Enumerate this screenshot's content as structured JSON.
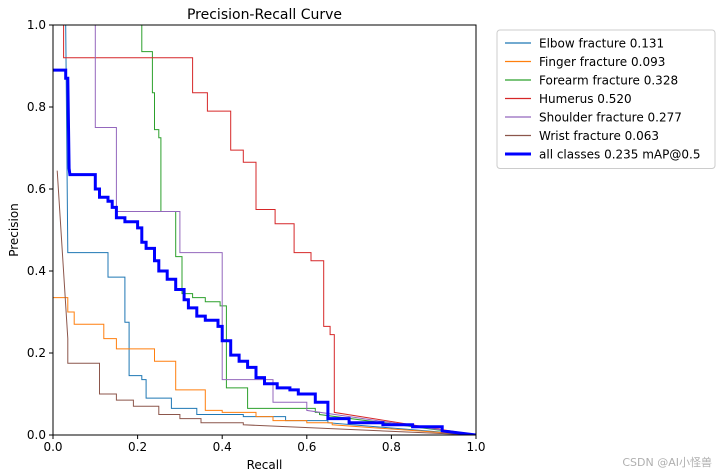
{
  "chart_data": {
    "type": "line",
    "title": "Precision-Recall Curve",
    "xlabel": "Recall",
    "ylabel": "Precision",
    "xlim": [
      0,
      1
    ],
    "ylim": [
      0,
      1
    ],
    "xticks": [
      "0.0",
      "0.2",
      "0.4",
      "0.6",
      "0.8",
      "1.0"
    ],
    "yticks": [
      "0.0",
      "0.2",
      "0.4",
      "0.6",
      "0.8",
      "1.0"
    ],
    "grid": false,
    "legend_position": "outside-top-right",
    "series": [
      {
        "name": "Elbow fracture 0.131",
        "color": "#1f77b4",
        "linewidth": "thin",
        "points": [
          [
            0.03,
            1.0
          ],
          [
            0.035,
            0.445
          ],
          [
            0.1,
            0.445
          ],
          [
            0.13,
            0.445
          ],
          [
            0.13,
            0.385
          ],
          [
            0.17,
            0.385
          ],
          [
            0.17,
            0.275
          ],
          [
            0.18,
            0.275
          ],
          [
            0.18,
            0.145
          ],
          [
            0.21,
            0.145
          ],
          [
            0.21,
            0.135
          ],
          [
            0.22,
            0.135
          ],
          [
            0.22,
            0.09
          ],
          [
            0.28,
            0.09
          ],
          [
            0.28,
            0.065
          ],
          [
            0.34,
            0.065
          ],
          [
            0.34,
            0.05
          ],
          [
            0.45,
            0.05
          ],
          [
            0.45,
            0.045
          ],
          [
            0.55,
            0.045
          ],
          [
            0.55,
            0.035
          ],
          [
            0.65,
            0.035
          ],
          [
            0.65,
            0.03
          ],
          [
            1.0,
            0.0
          ]
        ]
      },
      {
        "name": "Finger fracture 0.093",
        "color": "#ff7f0e",
        "linewidth": "thin",
        "points": [
          [
            0.0,
            0.335
          ],
          [
            0.035,
            0.335
          ],
          [
            0.035,
            0.3
          ],
          [
            0.05,
            0.3
          ],
          [
            0.05,
            0.27
          ],
          [
            0.12,
            0.27
          ],
          [
            0.12,
            0.235
          ],
          [
            0.15,
            0.235
          ],
          [
            0.15,
            0.21
          ],
          [
            0.24,
            0.21
          ],
          [
            0.24,
            0.18
          ],
          [
            0.29,
            0.18
          ],
          [
            0.29,
            0.11
          ],
          [
            0.36,
            0.11
          ],
          [
            0.36,
            0.06
          ],
          [
            0.4,
            0.06
          ],
          [
            0.4,
            0.055
          ],
          [
            0.48,
            0.055
          ],
          [
            0.48,
            0.045
          ],
          [
            0.52,
            0.045
          ],
          [
            0.52,
            0.035
          ],
          [
            0.6,
            0.035
          ],
          [
            0.6,
            0.03
          ],
          [
            0.66,
            0.03
          ],
          [
            0.66,
            0.025
          ],
          [
            1.0,
            0.0
          ]
        ]
      },
      {
        "name": "Forearm fracture 0.328",
        "color": "#2ca02c",
        "linewidth": "thin",
        "points": [
          [
            0.21,
            1.0
          ],
          [
            0.21,
            0.935
          ],
          [
            0.235,
            0.935
          ],
          [
            0.235,
            0.835
          ],
          [
            0.24,
            0.835
          ],
          [
            0.24,
            0.745
          ],
          [
            0.25,
            0.745
          ],
          [
            0.25,
            0.725
          ],
          [
            0.255,
            0.725
          ],
          [
            0.255,
            0.545
          ],
          [
            0.29,
            0.545
          ],
          [
            0.29,
            0.435
          ],
          [
            0.305,
            0.435
          ],
          [
            0.305,
            0.345
          ],
          [
            0.33,
            0.345
          ],
          [
            0.33,
            0.335
          ],
          [
            0.36,
            0.335
          ],
          [
            0.36,
            0.325
          ],
          [
            0.395,
            0.325
          ],
          [
            0.395,
            0.315
          ],
          [
            0.41,
            0.315
          ],
          [
            0.41,
            0.115
          ],
          [
            0.46,
            0.115
          ],
          [
            0.46,
            0.065
          ],
          [
            0.62,
            0.065
          ],
          [
            0.62,
            0.055
          ],
          [
            0.63,
            0.055
          ],
          [
            0.63,
            0.05
          ],
          [
            1.0,
            0.0
          ]
        ]
      },
      {
        "name": "Humerus 0.520",
        "color": "#d62728",
        "linewidth": "thin",
        "points": [
          [
            0.025,
            1.0
          ],
          [
            0.025,
            0.92
          ],
          [
            0.33,
            0.92
          ],
          [
            0.33,
            0.835
          ],
          [
            0.365,
            0.835
          ],
          [
            0.365,
            0.79
          ],
          [
            0.42,
            0.79
          ],
          [
            0.42,
            0.695
          ],
          [
            0.45,
            0.695
          ],
          [
            0.45,
            0.665
          ],
          [
            0.48,
            0.665
          ],
          [
            0.48,
            0.55
          ],
          [
            0.525,
            0.55
          ],
          [
            0.525,
            0.515
          ],
          [
            0.57,
            0.515
          ],
          [
            0.57,
            0.445
          ],
          [
            0.61,
            0.445
          ],
          [
            0.61,
            0.425
          ],
          [
            0.64,
            0.425
          ],
          [
            0.64,
            0.265
          ],
          [
            0.655,
            0.265
          ],
          [
            0.655,
            0.245
          ],
          [
            0.665,
            0.245
          ],
          [
            0.665,
            0.055
          ],
          [
            1.0,
            0.0
          ]
        ]
      },
      {
        "name": "Shoulder fracture 0.277",
        "color": "#9467bd",
        "linewidth": "thin",
        "points": [
          [
            0.1,
            1.0
          ],
          [
            0.1,
            0.75
          ],
          [
            0.15,
            0.75
          ],
          [
            0.15,
            0.545
          ],
          [
            0.3,
            0.545
          ],
          [
            0.3,
            0.445
          ],
          [
            0.4,
            0.445
          ],
          [
            0.4,
            0.135
          ],
          [
            0.52,
            0.135
          ],
          [
            0.52,
            0.08
          ],
          [
            0.6,
            0.08
          ],
          [
            0.6,
            0.06
          ],
          [
            1.0,
            0.0
          ]
        ]
      },
      {
        "name": "Wrist fracture 0.063",
        "color": "#8c564b",
        "linewidth": "thin",
        "points": [
          [
            0.01,
            0.645
          ],
          [
            0.035,
            0.235
          ],
          [
            0.035,
            0.175
          ],
          [
            0.11,
            0.175
          ],
          [
            0.11,
            0.1
          ],
          [
            0.15,
            0.1
          ],
          [
            0.15,
            0.085
          ],
          [
            0.19,
            0.085
          ],
          [
            0.19,
            0.07
          ],
          [
            0.25,
            0.07
          ],
          [
            0.25,
            0.05
          ],
          [
            0.3,
            0.05
          ],
          [
            0.3,
            0.04
          ],
          [
            0.35,
            0.04
          ],
          [
            0.35,
            0.03
          ],
          [
            0.45,
            0.03
          ],
          [
            0.45,
            0.025
          ],
          [
            1.0,
            0.0
          ]
        ]
      },
      {
        "name": "all classes 0.235 mAP@0.5",
        "color": "#0000ff",
        "linewidth": "thick",
        "points": [
          [
            0.0,
            0.89
          ],
          [
            0.03,
            0.89
          ],
          [
            0.03,
            0.87
          ],
          [
            0.035,
            0.87
          ],
          [
            0.038,
            0.65
          ],
          [
            0.04,
            0.635
          ],
          [
            0.1,
            0.635
          ],
          [
            0.1,
            0.6
          ],
          [
            0.11,
            0.6
          ],
          [
            0.11,
            0.58
          ],
          [
            0.13,
            0.58
          ],
          [
            0.13,
            0.57
          ],
          [
            0.14,
            0.57
          ],
          [
            0.14,
            0.555
          ],
          [
            0.15,
            0.555
          ],
          [
            0.15,
            0.53
          ],
          [
            0.17,
            0.53
          ],
          [
            0.17,
            0.52
          ],
          [
            0.2,
            0.52
          ],
          [
            0.2,
            0.505
          ],
          [
            0.21,
            0.505
          ],
          [
            0.21,
            0.47
          ],
          [
            0.22,
            0.47
          ],
          [
            0.22,
            0.455
          ],
          [
            0.24,
            0.455
          ],
          [
            0.24,
            0.425
          ],
          [
            0.25,
            0.425
          ],
          [
            0.25,
            0.4
          ],
          [
            0.27,
            0.4
          ],
          [
            0.27,
            0.38
          ],
          [
            0.29,
            0.38
          ],
          [
            0.29,
            0.355
          ],
          [
            0.31,
            0.355
          ],
          [
            0.31,
            0.33
          ],
          [
            0.32,
            0.33
          ],
          [
            0.32,
            0.31
          ],
          [
            0.34,
            0.31
          ],
          [
            0.34,
            0.29
          ],
          [
            0.36,
            0.29
          ],
          [
            0.36,
            0.28
          ],
          [
            0.39,
            0.28
          ],
          [
            0.39,
            0.265
          ],
          [
            0.4,
            0.265
          ],
          [
            0.4,
            0.23
          ],
          [
            0.42,
            0.23
          ],
          [
            0.42,
            0.195
          ],
          [
            0.44,
            0.195
          ],
          [
            0.44,
            0.18
          ],
          [
            0.46,
            0.18
          ],
          [
            0.46,
            0.165
          ],
          [
            0.48,
            0.165
          ],
          [
            0.48,
            0.14
          ],
          [
            0.5,
            0.14
          ],
          [
            0.5,
            0.125
          ],
          [
            0.53,
            0.125
          ],
          [
            0.53,
            0.115
          ],
          [
            0.56,
            0.115
          ],
          [
            0.56,
            0.11
          ],
          [
            0.58,
            0.11
          ],
          [
            0.58,
            0.1
          ],
          [
            0.62,
            0.1
          ],
          [
            0.62,
            0.08
          ],
          [
            0.65,
            0.08
          ],
          [
            0.65,
            0.04
          ],
          [
            0.7,
            0.04
          ],
          [
            0.7,
            0.03
          ],
          [
            0.78,
            0.03
          ],
          [
            0.78,
            0.025
          ],
          [
            0.85,
            0.025
          ],
          [
            0.85,
            0.02
          ],
          [
            0.92,
            0.02
          ],
          [
            0.92,
            0.01
          ],
          [
            1.0,
            0.0
          ]
        ]
      }
    ]
  },
  "watermark": "CSDN @AI小怪兽"
}
